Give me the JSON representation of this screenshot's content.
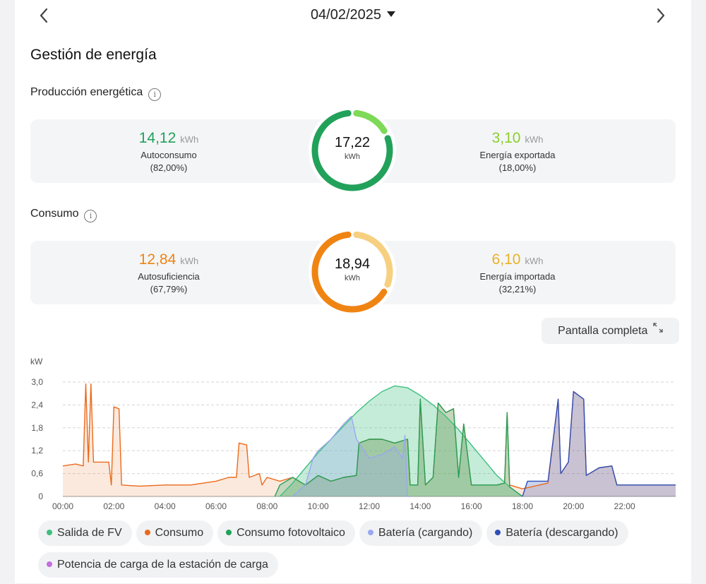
{
  "header": {
    "date": "04/02/2025"
  },
  "title": "Gestión de energía",
  "production": {
    "label": "Producción energética",
    "total": "17,22",
    "total_unit": "kWh",
    "left": {
      "value": "14,12",
      "unit": "kWh",
      "label": "Autoconsumo",
      "pct": "(82,00%)",
      "fraction": 0.82,
      "color": "#22a15a"
    },
    "right": {
      "value": "3,10",
      "unit": "kWh",
      "label": "Energía exportada",
      "pct": "(18,00%)",
      "fraction": 0.18,
      "color": "#7ed957"
    }
  },
  "consumption": {
    "label": "Consumo",
    "total": "18,94",
    "total_unit": "kWh",
    "left": {
      "value": "12,84",
      "unit": "kWh",
      "label": "Autosuficiencia",
      "pct": "(67,79%)",
      "fraction": 0.6779,
      "color": "#f08412"
    },
    "right": {
      "value": "6,10",
      "unit": "kWh",
      "label": "Energía importada",
      "pct": "(32,21%)",
      "fraction": 0.3221,
      "color": "#f6d080"
    }
  },
  "fullscreen_label": "Pantalla completa",
  "chart_data": {
    "type": "area",
    "ylabel": "kW",
    "ylim": [
      0,
      3.0
    ],
    "yticks": [
      "0",
      "0,6",
      "1,2",
      "1,8",
      "2,4",
      "3,0"
    ],
    "xticks": [
      "00:00",
      "02:00",
      "04:00",
      "06:00",
      "08:00",
      "10:00",
      "12:00",
      "14:00",
      "16:00",
      "18:00",
      "20:00",
      "22:00"
    ],
    "xlim_hours": [
      0,
      24
    ],
    "grid": true,
    "series": [
      {
        "name": "Salida de FV",
        "color": "#3fbf7f",
        "fill": "rgba(63,191,127,0.30)",
        "points": [
          [
            8.5,
            0
          ],
          [
            9,
            0.35
          ],
          [
            9.5,
            0.75
          ],
          [
            10,
            1.15
          ],
          [
            10.5,
            1.5
          ],
          [
            11,
            1.85
          ],
          [
            11.5,
            2.2
          ],
          [
            12,
            2.5
          ],
          [
            12.5,
            2.75
          ],
          [
            13,
            2.9
          ],
          [
            13.5,
            2.85
          ],
          [
            14,
            2.65
          ],
          [
            14.5,
            2.4
          ],
          [
            15,
            2.1
          ],
          [
            15.5,
            1.75
          ],
          [
            16,
            1.35
          ],
          [
            16.5,
            0.95
          ],
          [
            17,
            0.55
          ],
          [
            17.5,
            0.25
          ],
          [
            18,
            0
          ]
        ]
      },
      {
        "name": "Consumo",
        "color": "#ea6a1c",
        "fill": "rgba(234,106,28,0.15)",
        "points": [
          [
            0,
            0.8
          ],
          [
            0.5,
            0.85
          ],
          [
            0.8,
            0.8
          ],
          [
            0.9,
            2.95
          ],
          [
            1.0,
            0.9
          ],
          [
            1.1,
            2.95
          ],
          [
            1.2,
            0.9
          ],
          [
            1.8,
            0.9
          ],
          [
            1.9,
            0.3
          ],
          [
            2.0,
            2.35
          ],
          [
            2.2,
            2.3
          ],
          [
            2.3,
            0.3
          ],
          [
            3,
            0.27
          ],
          [
            4,
            0.3
          ],
          [
            5,
            0.3
          ],
          [
            6,
            0.4
          ],
          [
            6.5,
            0.5
          ],
          [
            6.8,
            0.5
          ],
          [
            6.9,
            1.4
          ],
          [
            7.2,
            1.35
          ],
          [
            7.3,
            0.5
          ],
          [
            7.7,
            0.6
          ],
          [
            7.8,
            0.3
          ],
          [
            8,
            0.5
          ],
          [
            8.5,
            0.4
          ],
          [
            9,
            0.5
          ],
          [
            9.5,
            0.3
          ],
          [
            10,
            0.55
          ],
          [
            10.5,
            0.4
          ],
          [
            11,
            0.5
          ],
          [
            11.5,
            0.55
          ],
          [
            11.6,
            1.4
          ],
          [
            12,
            1.5
          ],
          [
            12.5,
            1.5
          ],
          [
            13,
            1.4
          ],
          [
            13.5,
            1.5
          ],
          [
            13.6,
            0.3
          ],
          [
            13.9,
            0.3
          ],
          [
            14,
            2.55
          ],
          [
            14.2,
            0.3
          ],
          [
            14.5,
            0.5
          ],
          [
            14.7,
            2.45
          ],
          [
            15,
            2.2
          ],
          [
            15.3,
            2.3
          ],
          [
            15.5,
            0.5
          ],
          [
            15.7,
            1.9
          ],
          [
            16,
            0.3
          ],
          [
            17,
            0.3
          ],
          [
            17.3,
            0.35
          ],
          [
            17.4,
            2.2
          ],
          [
            17.5,
            0.3
          ],
          [
            18,
            0.2
          ],
          [
            19,
            0.35
          ],
          [
            19.4,
            2.55
          ],
          [
            19.5,
            0.6
          ],
          [
            19.8,
            0.9
          ],
          [
            20,
            2.75
          ],
          [
            20.2,
            2.65
          ],
          [
            20.4,
            2.55
          ],
          [
            20.5,
            0.55
          ],
          [
            21,
            0.75
          ],
          [
            21.5,
            0.8
          ],
          [
            21.7,
            0.3
          ],
          [
            22,
            0.3
          ],
          [
            23,
            0.3
          ],
          [
            24,
            0.3
          ]
        ]
      },
      {
        "name": "Consumo fotovoltaico",
        "color": "#22a15a",
        "fill": "rgba(34,161,90,0.25)",
        "points": [
          [
            8.3,
            0
          ],
          [
            8.5,
            0.3
          ],
          [
            9,
            0.5
          ],
          [
            9.5,
            0.3
          ],
          [
            10,
            0.55
          ],
          [
            10.5,
            0.4
          ],
          [
            11,
            0.5
          ],
          [
            11.5,
            0.55
          ],
          [
            11.6,
            1.4
          ],
          [
            12,
            1.5
          ],
          [
            12.5,
            1.5
          ],
          [
            13,
            1.4
          ],
          [
            13.5,
            1.5
          ],
          [
            13.6,
            0.3
          ],
          [
            13.9,
            0.3
          ],
          [
            14,
            2.55
          ],
          [
            14.2,
            0.3
          ],
          [
            14.5,
            0.5
          ],
          [
            14.7,
            2.45
          ],
          [
            15,
            2.2
          ],
          [
            15.3,
            2.3
          ],
          [
            15.5,
            0.5
          ],
          [
            15.7,
            1.9
          ],
          [
            16,
            0.3
          ],
          [
            17,
            0.3
          ],
          [
            17.3,
            0.35
          ],
          [
            17.4,
            2.2
          ],
          [
            17.5,
            0.25
          ],
          [
            18,
            0
          ]
        ]
      },
      {
        "name": "Batería (cargando)",
        "color": "#9aa8f0",
        "fill": "rgba(154,168,240,0.30)",
        "points": [
          [
            9,
            0
          ],
          [
            9.5,
            0.3
          ],
          [
            9.8,
            1.0
          ],
          [
            10,
            1.2
          ],
          [
            10.5,
            1.5
          ],
          [
            11,
            1.9
          ],
          [
            11.3,
            2.1
          ],
          [
            11.5,
            1.5
          ],
          [
            12,
            1.0
          ],
          [
            12.5,
            1.1
          ],
          [
            13,
            1.3
          ],
          [
            13.3,
            1.0
          ],
          [
            13.4,
            1.6
          ],
          [
            13.5,
            0
          ],
          [
            13.6,
            0
          ]
        ]
      },
      {
        "name": "Batería (descargando)",
        "color": "#2f4fb8",
        "fill": "rgba(47,79,184,0.25)",
        "points": [
          [
            18,
            0
          ],
          [
            18.2,
            0.4
          ],
          [
            19,
            0.4
          ],
          [
            19.4,
            2.55
          ],
          [
            19.5,
            0.6
          ],
          [
            19.8,
            0.9
          ],
          [
            20,
            2.75
          ],
          [
            20.2,
            2.65
          ],
          [
            20.4,
            2.55
          ],
          [
            20.5,
            0.55
          ],
          [
            21,
            0.75
          ],
          [
            21.5,
            0.8
          ],
          [
            21.7,
            0.3
          ],
          [
            22,
            0.3
          ],
          [
            23,
            0.3
          ],
          [
            24,
            0.3
          ]
        ]
      },
      {
        "name": "Potencia de carga de la estación de carga",
        "color": "#c46ee0",
        "fill": "rgba(196,110,224,0.0)",
        "points": []
      }
    ]
  }
}
